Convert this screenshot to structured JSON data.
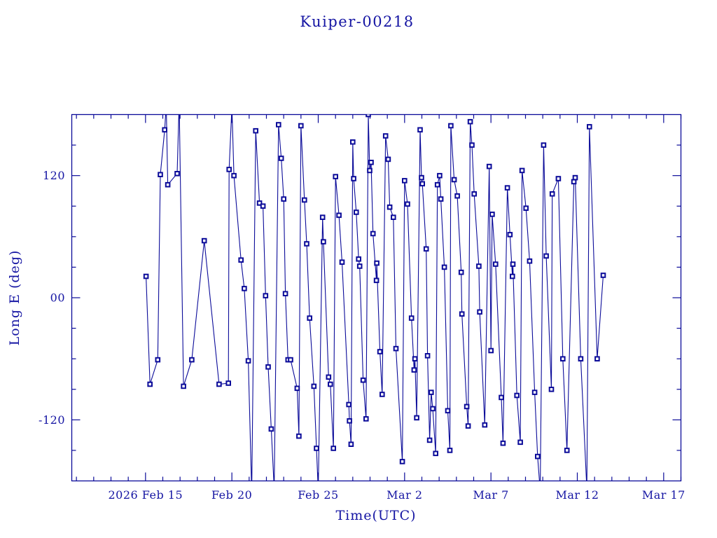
{
  "page": {
    "background": "#ffffff"
  },
  "colors": {
    "plot_blue": "#0b0b99",
    "text_blue": "#1515a3",
    "background": "#ffffff"
  },
  "chart_data": {
    "type": "line",
    "title": "Kuiper-00218",
    "xlabel": "Time(UTC)",
    "ylabel": "Long E (deg)",
    "x_unit": "days relative to 2026 Feb 15 00:00 UTC",
    "xlim": [
      -4.27,
      31.0
    ],
    "ylim": [
      -180,
      180
    ],
    "grid": false,
    "legend": "none",
    "marker": "open-square",
    "x_major_ticks": [
      {
        "day": 0,
        "label": "2026 Feb 15"
      },
      {
        "day": 5,
        "label": "Feb 20"
      },
      {
        "day": 10,
        "label": "Feb 25"
      },
      {
        "day": 15,
        "label": "Mar 2"
      },
      {
        "day": 20,
        "label": "Mar 7"
      },
      {
        "day": 25,
        "label": "Mar 12"
      },
      {
        "day": 30,
        "label": "Mar 17"
      }
    ],
    "x_minor_tick_step_days": 1,
    "y_major_ticks": [
      {
        "value": 120,
        "label": "120"
      },
      {
        "value": 0,
        "label": "00"
      },
      {
        "value": -120,
        "label": "-120"
      }
    ],
    "y_minor_tick_step": 30,
    "series": [
      {
        "name": "Long E",
        "points": [
          [
            0.03,
            21
          ],
          [
            0.26,
            -85
          ],
          [
            0.71,
            -61
          ],
          [
            0.86,
            121
          ],
          [
            1.11,
            165
          ],
          [
            1.2,
            190
          ],
          [
            1.29,
            111
          ],
          [
            1.83,
            122
          ],
          [
            1.95,
            193
          ],
          [
            2.2,
            -87
          ],
          [
            2.68,
            -61
          ],
          [
            3.4,
            56
          ],
          [
            4.26,
            -85
          ],
          [
            4.8,
            -84
          ],
          [
            4.84,
            126
          ],
          [
            5.0,
            188
          ],
          [
            5.12,
            120
          ],
          [
            5.53,
            37
          ],
          [
            5.72,
            9
          ],
          [
            5.95,
            -62
          ],
          [
            6.15,
            -192
          ],
          [
            6.38,
            164
          ],
          [
            6.6,
            93
          ],
          [
            6.8,
            90
          ],
          [
            6.95,
            2
          ],
          [
            7.1,
            -68
          ],
          [
            7.28,
            -129
          ],
          [
            7.45,
            -188
          ],
          [
            7.7,
            170
          ],
          [
            7.86,
            137
          ],
          [
            8.0,
            97
          ],
          [
            8.1,
            4
          ],
          [
            8.25,
            -61
          ],
          [
            8.4,
            -61
          ],
          [
            8.78,
            -89
          ],
          [
            8.88,
            -136
          ],
          [
            9.0,
            169
          ],
          [
            9.2,
            96
          ],
          [
            9.33,
            53
          ],
          [
            9.5,
            -20
          ],
          [
            9.75,
            -87
          ],
          [
            9.9,
            -148
          ],
          [
            10.0,
            -190
          ],
          [
            10.25,
            79
          ],
          [
            10.3,
            55
          ],
          [
            10.6,
            -78
          ],
          [
            10.7,
            -85
          ],
          [
            10.88,
            -148
          ],
          [
            11.0,
            119
          ],
          [
            11.2,
            81
          ],
          [
            11.38,
            35
          ],
          [
            11.77,
            -105
          ],
          [
            11.81,
            -121
          ],
          [
            11.9,
            -144
          ],
          [
            12.0,
            153
          ],
          [
            12.05,
            117
          ],
          [
            12.2,
            84
          ],
          [
            12.34,
            38
          ],
          [
            12.4,
            31
          ],
          [
            12.6,
            -81
          ],
          [
            12.77,
            -119
          ],
          [
            12.9,
            180
          ],
          [
            12.98,
            125
          ],
          [
            13.06,
            133
          ],
          [
            13.17,
            63
          ],
          [
            13.37,
            17
          ],
          [
            13.39,
            34
          ],
          [
            13.57,
            -53
          ],
          [
            13.7,
            -95
          ],
          [
            13.9,
            159
          ],
          [
            14.05,
            136
          ],
          [
            14.14,
            89
          ],
          [
            14.35,
            79
          ],
          [
            14.5,
            -50
          ],
          [
            14.87,
            -161
          ],
          [
            15.0,
            115
          ],
          [
            15.17,
            92
          ],
          [
            15.4,
            -20
          ],
          [
            15.55,
            -71
          ],
          [
            15.6,
            -60
          ],
          [
            15.7,
            -118
          ],
          [
            15.9,
            165
          ],
          [
            15.98,
            118
          ],
          [
            16.03,
            112
          ],
          [
            16.25,
            48
          ],
          [
            16.33,
            -57
          ],
          [
            16.45,
            -140
          ],
          [
            16.54,
            -93
          ],
          [
            16.63,
            -109
          ],
          [
            16.8,
            -153
          ],
          [
            16.9,
            111
          ],
          [
            17.03,
            120
          ],
          [
            17.1,
            97
          ],
          [
            17.3,
            30
          ],
          [
            17.5,
            -111
          ],
          [
            17.62,
            -150
          ],
          [
            17.68,
            169
          ],
          [
            17.87,
            116
          ],
          [
            18.05,
            100
          ],
          [
            18.28,
            25
          ],
          [
            18.32,
            -16
          ],
          [
            18.6,
            -107
          ],
          [
            18.68,
            -126
          ],
          [
            18.8,
            173
          ],
          [
            18.9,
            150
          ],
          [
            19.03,
            102
          ],
          [
            19.3,
            31
          ],
          [
            19.35,
            -14
          ],
          [
            19.64,
            -125
          ],
          [
            19.9,
            129
          ],
          [
            20.0,
            -52
          ],
          [
            20.07,
            82
          ],
          [
            20.27,
            33
          ],
          [
            20.6,
            -98
          ],
          [
            20.7,
            -143
          ],
          [
            20.95,
            108
          ],
          [
            21.1,
            62
          ],
          [
            21.24,
            21
          ],
          [
            21.27,
            33
          ],
          [
            21.5,
            -96
          ],
          [
            21.7,
            -142
          ],
          [
            21.8,
            125
          ],
          [
            22.03,
            88
          ],
          [
            22.24,
            36
          ],
          [
            22.53,
            -93
          ],
          [
            22.7,
            -156
          ],
          [
            22.85,
            -190
          ],
          [
            23.05,
            150
          ],
          [
            23.2,
            41
          ],
          [
            23.5,
            -90
          ],
          [
            23.55,
            102
          ],
          [
            23.9,
            117
          ],
          [
            24.16,
            -60
          ],
          [
            24.4,
            -150
          ],
          [
            24.8,
            114
          ],
          [
            24.88,
            118
          ],
          [
            25.2,
            -60
          ],
          [
            25.55,
            -188
          ],
          [
            25.7,
            168
          ],
          [
            26.15,
            -60
          ],
          [
            26.5,
            22
          ]
        ]
      }
    ]
  }
}
